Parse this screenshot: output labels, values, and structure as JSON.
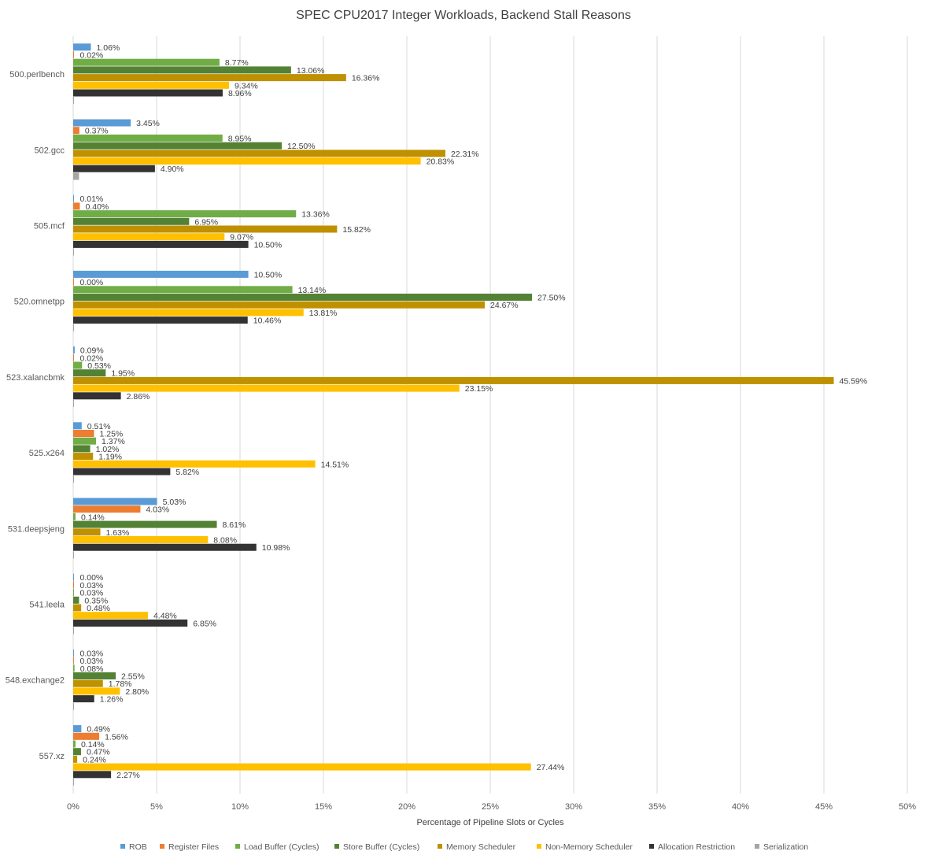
{
  "chart_data": {
    "type": "bar",
    "orientation": "horizontal",
    "title": "SPEC CPU2017 Integer Workloads, Backend Stall Reasons",
    "xlabel": "Percentage of Pipeline Slots or Cycles",
    "ylabel": "",
    "xlim": [
      0,
      50
    ],
    "x_ticks": [
      0,
      5,
      10,
      15,
      20,
      25,
      30,
      35,
      40,
      45,
      50
    ],
    "x_tick_labels": [
      "0%",
      "5%",
      "10%",
      "15%",
      "20%",
      "25%",
      "30%",
      "35%",
      "40%",
      "45%",
      "50%"
    ],
    "grid": "vertical",
    "legend_position": "bottom",
    "categories": [
      "500.perlbench",
      "502.gcc",
      "505.mcf",
      "520.omnetpp",
      "523.xalancbmk",
      "525.x264",
      "531.deepsjeng",
      "541.leela",
      "548.exchange2",
      "557.xz"
    ],
    "series": [
      {
        "name": "ROB",
        "color": "#5b9bd5",
        "show_labels": true,
        "values": [
          1.06,
          3.45,
          0.01,
          10.5,
          0.09,
          0.51,
          5.03,
          0.0,
          0.03,
          0.49
        ]
      },
      {
        "name": "Register Files",
        "color": "#ed7d31",
        "show_labels": true,
        "values": [
          0.02,
          0.37,
          0.4,
          0.0,
          0.02,
          1.25,
          4.03,
          0.03,
          0.03,
          1.56
        ]
      },
      {
        "name": "Load Buffer (Cycles)",
        "color": "#70ad47",
        "show_labels": true,
        "values": [
          8.77,
          8.95,
          13.36,
          13.14,
          0.53,
          1.37,
          0.14,
          0.03,
          0.08,
          0.14
        ]
      },
      {
        "name": "Store Buffer (Cycles)",
        "color": "#548235",
        "show_labels": true,
        "values": [
          13.06,
          12.5,
          6.95,
          27.5,
          1.95,
          1.02,
          8.61,
          0.35,
          2.55,
          0.47
        ]
      },
      {
        "name": "Memory Scheduler",
        "color": "#bf9000",
        "show_labels": true,
        "values": [
          16.36,
          22.31,
          15.82,
          24.67,
          45.59,
          1.19,
          1.63,
          0.48,
          1.78,
          0.24
        ]
      },
      {
        "name": "Non-Memory Scheduler",
        "color": "#ffc000",
        "show_labels": true,
        "values": [
          9.34,
          20.83,
          9.07,
          13.81,
          23.15,
          14.51,
          8.08,
          4.48,
          2.8,
          27.44
        ]
      },
      {
        "name": "Allocation Restriction",
        "color": "#333333",
        "show_labels": true,
        "values": [
          8.96,
          4.9,
          10.5,
          10.46,
          2.86,
          5.82,
          10.98,
          6.85,
          1.26,
          2.27
        ]
      },
      {
        "name": "Serialization",
        "color": "#a5a5a5",
        "show_labels": false,
        "values": [
          0.05,
          0.35,
          0.05,
          0.05,
          0.05,
          0.05,
          0.05,
          0.05,
          0.05,
          0.05
        ]
      }
    ],
    "value_label_suffix": "%"
  }
}
